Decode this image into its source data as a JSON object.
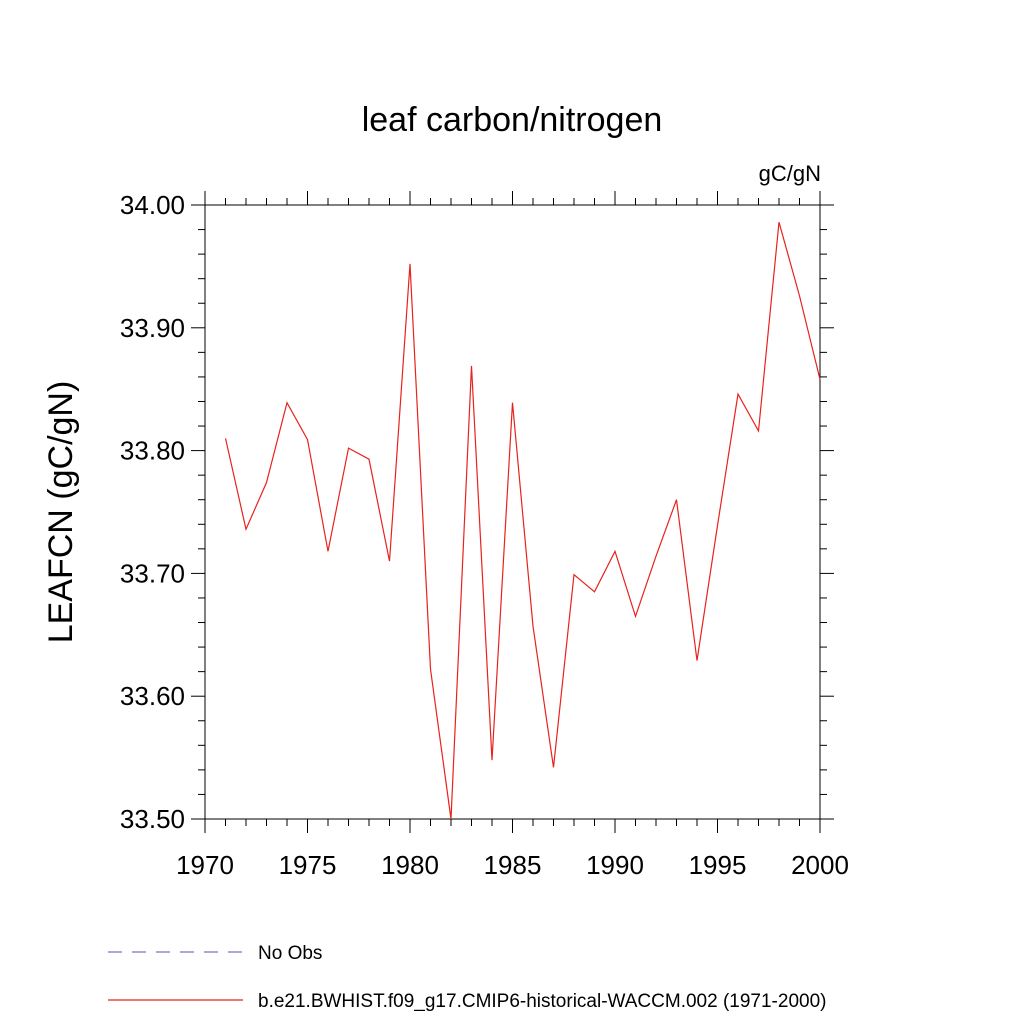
{
  "chart_data": {
    "type": "line",
    "title": "leaf carbon/nitrogen",
    "units": "gC/gN",
    "xlabel": "",
    "ylabel": "LEAFCN  (gC/gN)",
    "xlim": [
      1970,
      2000
    ],
    "ylim": [
      33.5,
      34.0
    ],
    "xticks": [
      "1970",
      "1975",
      "1980",
      "1985",
      "1990",
      "1995",
      "2000"
    ],
    "yticks": [
      "33.50",
      "33.60",
      "33.70",
      "33.80",
      "33.90",
      "34.00"
    ],
    "grid": false,
    "legend_position": "bottom-left",
    "series": [
      {
        "name": "No Obs",
        "color": "#7b74c4",
        "style": "dashed",
        "x": [],
        "values": []
      },
      {
        "name": "b.e21.BWHIST.f09_g17.CMIP6-historical-WACCM.002 (1971-2000)",
        "color": "#e8221c",
        "style": "solid",
        "x": [
          1971,
          1972,
          1973,
          1974,
          1975,
          1976,
          1977,
          1978,
          1979,
          1980,
          1981,
          1982,
          1983,
          1984,
          1985,
          1986,
          1987,
          1988,
          1989,
          1990,
          1991,
          1992,
          1993,
          1994,
          1995,
          1996,
          1997,
          1998,
          1999,
          2000
        ],
        "values": [
          33.81,
          33.736,
          33.774,
          33.839,
          33.809,
          33.718,
          33.802,
          33.793,
          33.71,
          33.952,
          33.622,
          33.5,
          33.869,
          33.548,
          33.839,
          33.657,
          33.542,
          33.699,
          33.685,
          33.718,
          33.665,
          33.714,
          33.76,
          33.629,
          33.739,
          33.846,
          33.816,
          33.986,
          33.926,
          33.858
        ]
      }
    ]
  }
}
